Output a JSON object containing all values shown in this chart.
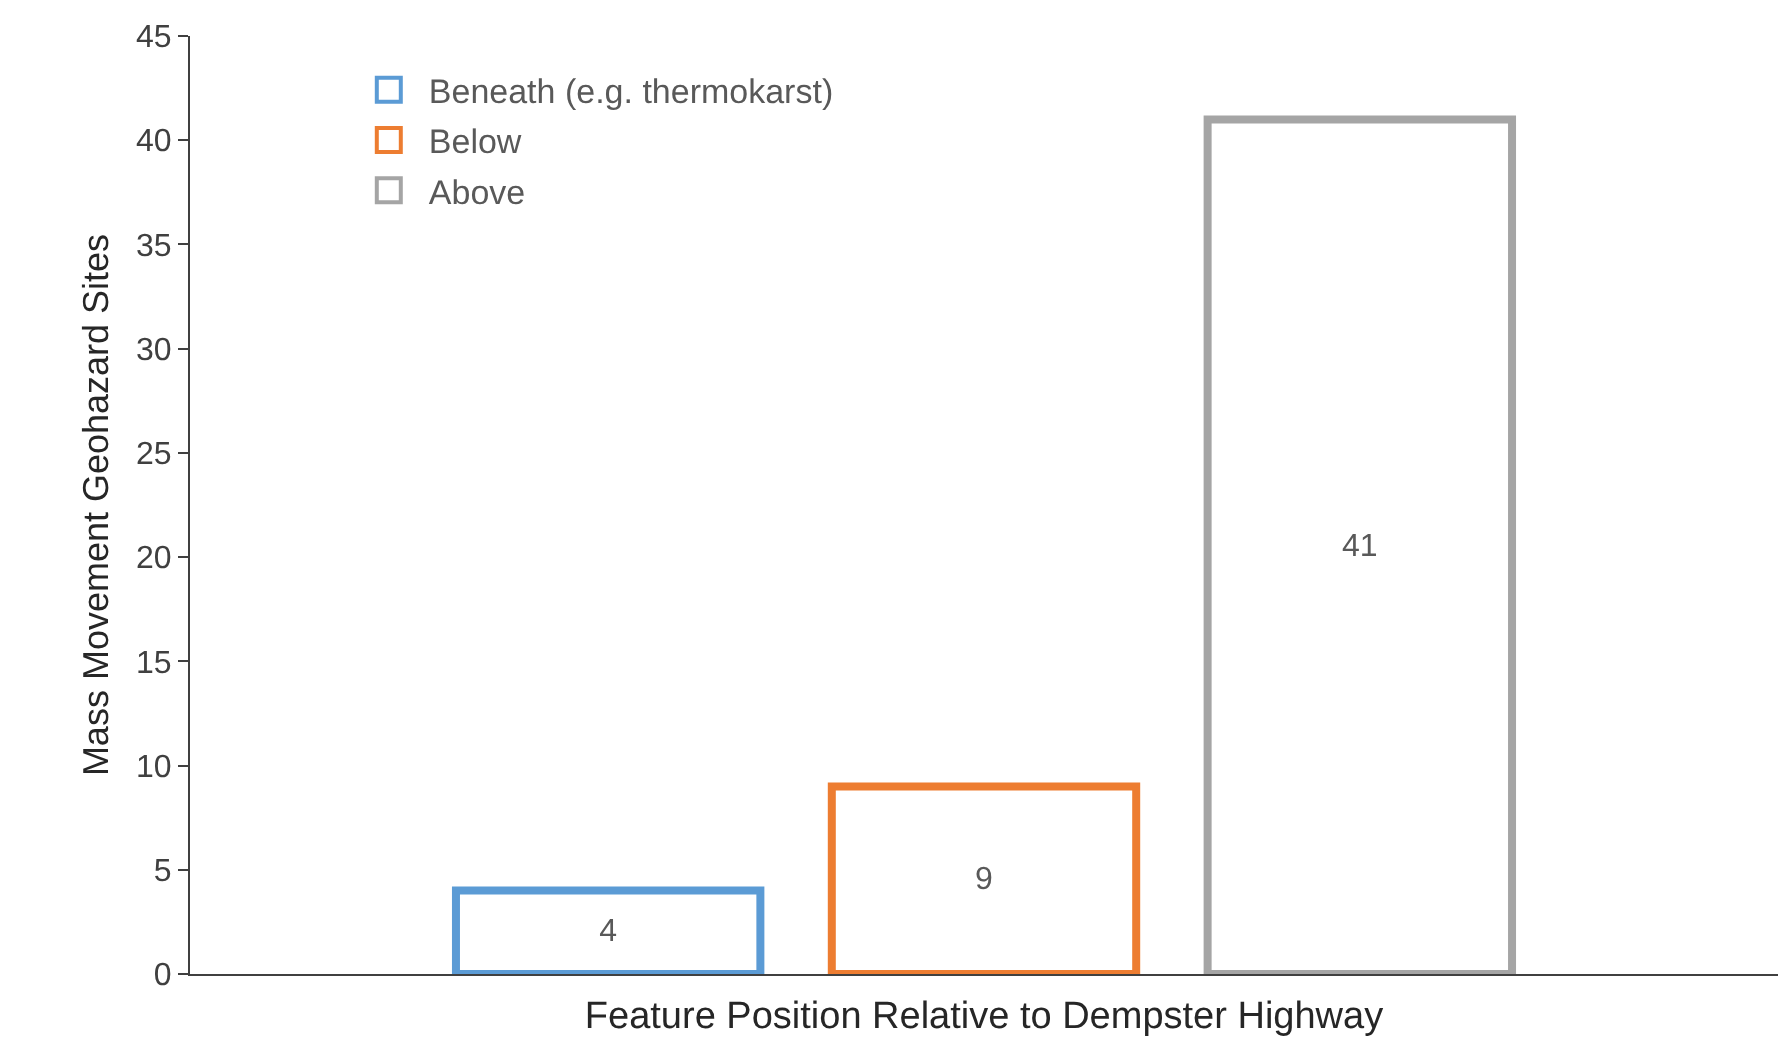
{
  "chart_data": {
    "type": "bar",
    "xlabel": "Feature Position Relative to Dempster Highway",
    "ylabel": "Mass Movement Geohazard Sites",
    "categories": [
      null
    ],
    "series": [
      {
        "name": "Beneath (e.g. thermokarst)",
        "color": "#5b9bd5",
        "values": [
          4
        ]
      },
      {
        "name": "Below",
        "color": "#ed7d31",
        "values": [
          9
        ]
      },
      {
        "name": "Above",
        "color": "#a5a5a5",
        "values": [
          41
        ]
      }
    ],
    "ylim": [
      0,
      45
    ],
    "yticks": [
      0,
      5,
      10,
      15,
      20,
      25,
      30,
      35,
      40,
      45
    ],
    "data_labels": true,
    "grid": false,
    "legend": "top left"
  }
}
